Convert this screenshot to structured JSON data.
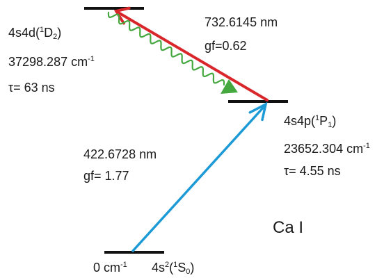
{
  "colors": {
    "level": "#111111",
    "red_arrow": "#d8262b",
    "blue_arrow": "#1c9ad6",
    "green_decay": "#45a83e"
  },
  "levels": {
    "upper": {
      "config": "4s4d",
      "term_open": "(",
      "term_mult": "1",
      "term_letter": "D",
      "term_j": "2",
      "term_close": ")",
      "energy_value": "37298.287 cm",
      "energy_exp": "-1",
      "lifetime": "τ= 63 ns"
    },
    "middle": {
      "config": "4s4p",
      "term_open": "(",
      "term_mult": "1",
      "term_letter": "P",
      "term_j": "1",
      "term_close": ")",
      "energy_value": "23652.304 cm",
      "energy_exp": "-1",
      "lifetime": "τ= 4.55 ns"
    },
    "ground": {
      "energy_value": "0 cm",
      "energy_exp": "-1",
      "config": "4s",
      "config_exp": "2",
      "term_open": "(",
      "term_mult": "1",
      "term_letter": "S",
      "term_j": "0",
      "term_close": ")"
    }
  },
  "transitions": {
    "red": {
      "wavelength": "732.6145 nm",
      "gf": "gf=0.62"
    },
    "blue": {
      "wavelength": "422.6728 nm",
      "gf": "gf= 1.77"
    }
  },
  "species": "Ca I"
}
